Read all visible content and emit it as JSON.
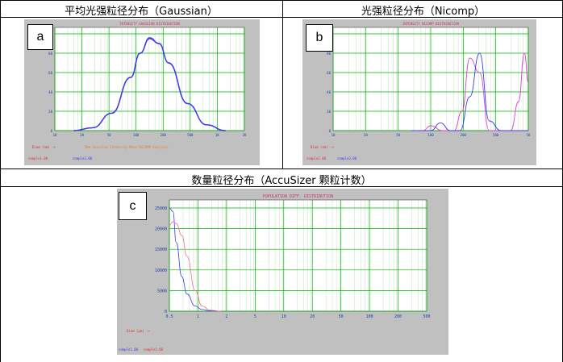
{
  "header": {
    "a": "平均光强粒径分布（Gaussian）",
    "b": "光强粒径分布（Nicomp）",
    "c": "数量粒径分布（AccuSizer 颗粒计数）"
  },
  "badges": {
    "a": "a",
    "b": "b",
    "c": "c"
  },
  "colors": {
    "frame": "#c0c0c0",
    "grid": "#00b000",
    "purple": "#6a3fd4",
    "blue": "#3a3af0",
    "magenta": "#e040d0",
    "pink": "#f07090",
    "red": "#e03030"
  },
  "chart_data": [
    {
      "id": "a",
      "type": "line",
      "title": "INTENSITY GAUSSIAN DISTRIBUTION",
      "x_ticks": [
        "10",
        "20",
        "50",
        "100",
        "200",
        "500",
        "1K",
        "2K"
      ],
      "y_ticks": [
        "100",
        "80",
        "60",
        "40",
        "20",
        "0"
      ],
      "x_unit": "Diam (nm) ->",
      "ylim": [
        0,
        100
      ],
      "series": [
        {
          "name": "sample1.00",
          "x": [
            0.1,
            0.2,
            0.3,
            0.4,
            0.45,
            0.5,
            0.55,
            0.6,
            0.7,
            0.8,
            0.9
          ],
          "values": [
            0,
            3,
            18,
            55,
            80,
            95,
            90,
            70,
            28,
            6,
            0
          ]
        },
        {
          "name": "sample2.00",
          "x": [
            0.1,
            0.2,
            0.3,
            0.4,
            0.45,
            0.5,
            0.55,
            0.6,
            0.7,
            0.8,
            0.9
          ],
          "values": [
            0,
            3,
            18,
            55,
            80,
            96,
            90,
            70,
            28,
            6,
            0
          ]
        }
      ],
      "footer": [
        "Diam (nm) ->",
        "sample1.00",
        "sample2.00",
        "50% Gaussian Intensity Mean NICOMP Analysis"
      ]
    },
    {
      "id": "b",
      "type": "line",
      "title": "INTENSITY NICOMP DISTRIBUTION",
      "x_ticks": [
        "10",
        "20",
        "50",
        "100",
        "200",
        "500",
        "1K"
      ],
      "y_ticks": [
        "100",
        "80",
        "60",
        "40",
        "20",
        "0"
      ],
      "x_unit": "Diam (nm) ->",
      "ylim": [
        0,
        100
      ],
      "series": [
        {
          "name": "sample1.00",
          "x": [
            0.4,
            0.46,
            0.5,
            0.56,
            0.62,
            0.66,
            0.7,
            0.75,
            0.8,
            0.86,
            0.91,
            0.95,
            0.98,
            1.0
          ],
          "values": [
            0,
            0,
            5,
            0,
            0,
            20,
            75,
            60,
            0,
            0,
            0,
            30,
            80,
            50
          ]
        },
        {
          "name": "sample2.00",
          "x": [
            0.4,
            0.5,
            0.55,
            0.6,
            0.65,
            0.7,
            0.75,
            0.8,
            0.86,
            1.0
          ],
          "values": [
            0,
            0,
            8,
            0,
            0,
            35,
            80,
            10,
            0,
            0
          ]
        }
      ],
      "footer": [
        "Diam (nm) ->",
        "sample1.00",
        "sample2.00"
      ]
    },
    {
      "id": "c",
      "type": "line",
      "title": "POPULATION DIFF. DISTRIBUTION",
      "x_ticks": [
        "0.5",
        "1",
        "2",
        "5",
        "10",
        "20",
        "50",
        "100",
        "200",
        "500"
      ],
      "y_ticks": [
        "25000",
        "20000",
        "15000",
        "10000",
        "5000",
        "0"
      ],
      "x_unit": "Diam (µm) ->",
      "ylim": [
        0,
        30000
      ],
      "series": [
        {
          "name": "sample1.00",
          "x": [
            0.5,
            0.55,
            0.6,
            0.7,
            0.8,
            1.0,
            1.2,
            1.5,
            2.0
          ],
          "values": [
            30000,
            29000,
            20000,
            10000,
            5000,
            1500,
            500,
            100,
            0
          ]
        },
        {
          "name": "sample2.00",
          "x": [
            0.5,
            0.55,
            0.6,
            0.7,
            0.8,
            1.0,
            1.2,
            1.5,
            2.0
          ],
          "values": [
            25000,
            26000,
            25500,
            22000,
            16000,
            6000,
            1500,
            300,
            0
          ]
        }
      ],
      "footer": [
        "Diam (µm) ->",
        "sample1.00",
        "sample2.00"
      ]
    }
  ]
}
